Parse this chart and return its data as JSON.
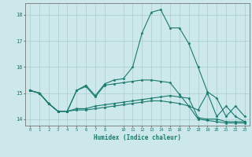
{
  "title": "",
  "xlabel": "Humidex (Indice chaleur)",
  "bg_color": "#cce8ea",
  "grid_color": "#aacccc",
  "line_color": "#1a7a6e",
  "xlim": [
    -0.5,
    23.5
  ],
  "ylim": [
    13.75,
    18.45
  ],
  "yticks": [
    14,
    15,
    16,
    17,
    18
  ],
  "xticks": [
    0,
    1,
    2,
    3,
    4,
    5,
    6,
    7,
    8,
    10,
    11,
    12,
    13,
    14,
    15,
    16,
    17,
    18,
    19,
    20,
    21,
    22,
    23
  ],
  "lines": [
    [
      15.1,
      15.0,
      14.6,
      14.3,
      14.3,
      15.1,
      15.25,
      14.85,
      15.3,
      15.35,
      15.4,
      15.45,
      15.5,
      15.5,
      15.45,
      15.4,
      14.95,
      14.5,
      14.35,
      15.0,
      14.1,
      14.5,
      14.1,
      13.9
    ],
    [
      15.1,
      15.0,
      14.6,
      14.3,
      14.3,
      15.1,
      15.3,
      14.9,
      15.35,
      15.5,
      15.55,
      16.0,
      17.3,
      18.1,
      18.2,
      17.5,
      17.5,
      16.9,
      16.0,
      15.05,
      14.8,
      14.1,
      14.5,
      14.1
    ],
    [
      15.1,
      15.0,
      14.6,
      14.3,
      14.3,
      14.4,
      14.4,
      14.5,
      14.55,
      14.6,
      14.65,
      14.7,
      14.75,
      14.8,
      14.85,
      14.9,
      14.85,
      14.8,
      14.05,
      14.0,
      14.0,
      13.9,
      13.9,
      13.9
    ],
    [
      15.1,
      15.0,
      14.6,
      14.3,
      14.3,
      14.35,
      14.35,
      14.4,
      14.45,
      14.5,
      14.55,
      14.6,
      14.65,
      14.7,
      14.7,
      14.65,
      14.6,
      14.5,
      14.0,
      13.95,
      13.9,
      13.85,
      13.85,
      13.85
    ]
  ]
}
